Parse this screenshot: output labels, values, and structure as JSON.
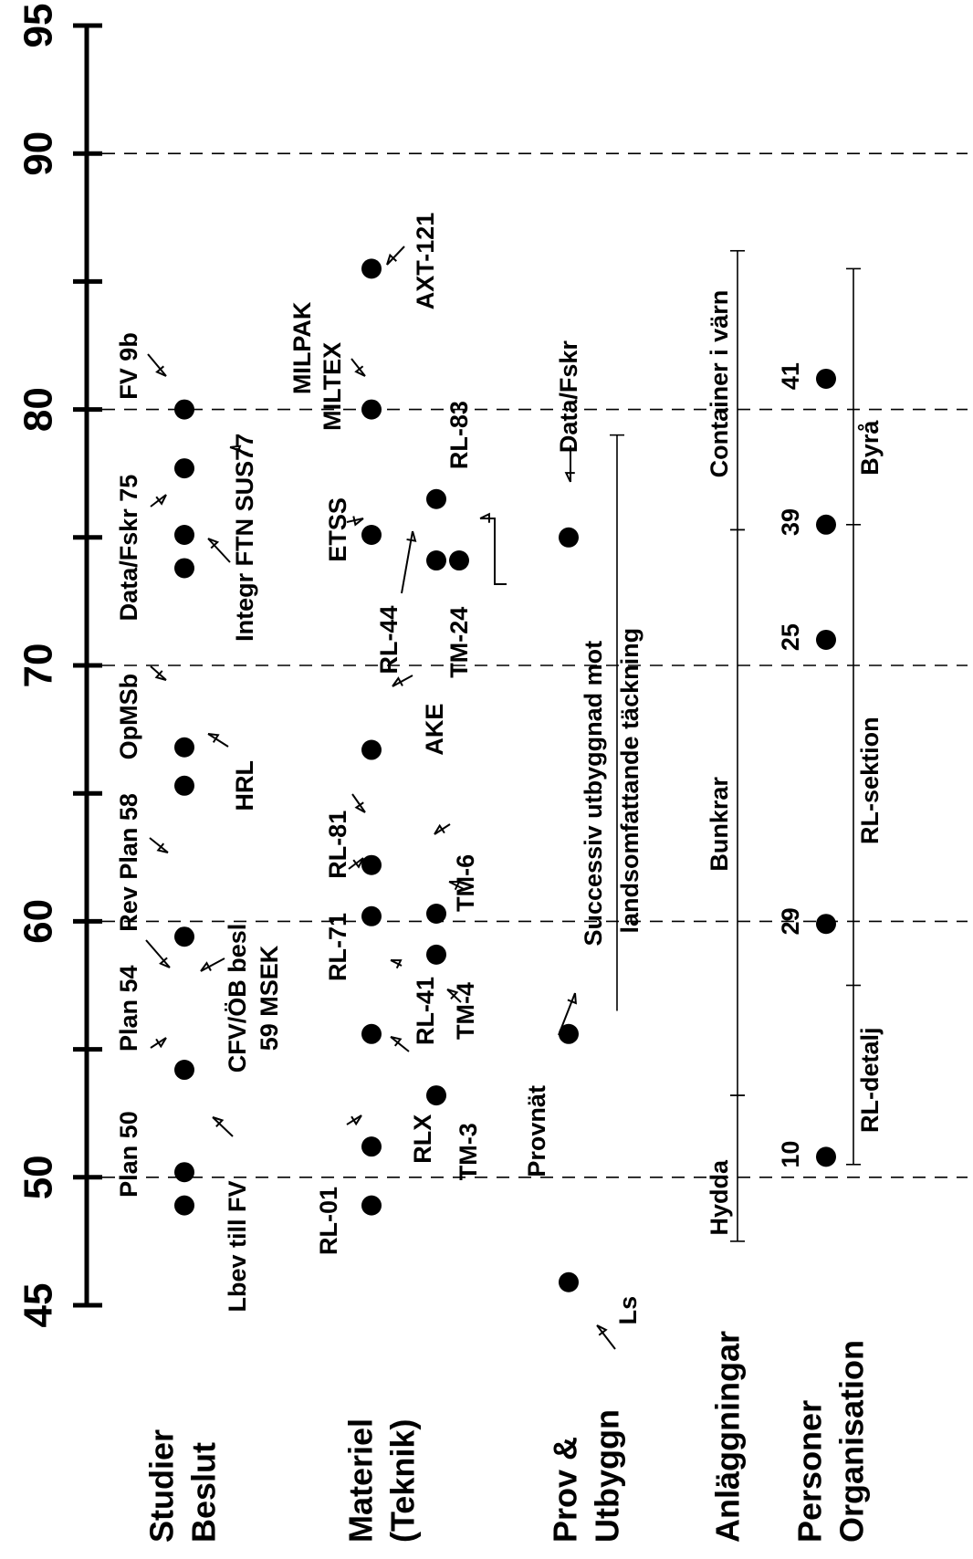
{
  "axis": {
    "ticks": [
      {
        "value": 45,
        "label": "45"
      },
      {
        "value": 50,
        "label": "50"
      },
      {
        "value": 55,
        "label": ""
      },
      {
        "value": 60,
        "label": "60"
      },
      {
        "value": 65,
        "label": ""
      },
      {
        "value": 70,
        "label": "70"
      },
      {
        "value": 75,
        "label": ""
      },
      {
        "value": 80,
        "label": "80"
      },
      {
        "value": 85,
        "label": ""
      },
      {
        "value": 90,
        "label": "90"
      },
      {
        "value": 95,
        "label": "95"
      }
    ],
    "dashed_gridlines": [
      50,
      60,
      70,
      80,
      90
    ]
  },
  "categories": [
    {
      "id": "studier",
      "lines": [
        "Studier",
        "Beslut"
      ]
    },
    {
      "id": "materiel",
      "lines": [
        "Materiel",
        "(Teknik)"
      ]
    },
    {
      "id": "prov",
      "lines": [
        "Prov &",
        "Utbyggn"
      ]
    },
    {
      "id": "anlaggningar",
      "lines": [
        "Anläggningar"
      ]
    },
    {
      "id": "personer",
      "lines": [
        "Personer",
        "Organisation"
      ]
    }
  ],
  "events": {
    "studier": [
      {
        "year": 48.9,
        "label": "Lbev till FV"
      },
      {
        "year": 50.2,
        "label": "Plan 50"
      },
      {
        "year": 54.2,
        "label": "Plan 54"
      },
      {
        "year": 54.2,
        "label": "CFV/ÖB besl"
      },
      {
        "year": 54.2,
        "label": "59 MSEK"
      },
      {
        "year": 59.4,
        "label": "Rev Plan 58"
      },
      {
        "year": 65.3,
        "label": "HRL"
      },
      {
        "year": 66.8,
        "label": "OpMSb"
      },
      {
        "year": 73.8,
        "label": "Integr FTN SUS77"
      },
      {
        "year": 75.1,
        "label": "Data/Fskr 75"
      },
      {
        "year": 77.7,
        "label": ""
      },
      {
        "year": 80.0,
        "label": "FV 9b"
      }
    ],
    "materiel": [
      {
        "year": 48.9,
        "label": "RL-01"
      },
      {
        "year": 51.2,
        "label": "RLX"
      },
      {
        "year": 55.6,
        "label": "RL-41"
      },
      {
        "year": 60.2,
        "label": "RL-71"
      },
      {
        "year": 62.2,
        "label": "RL-81"
      },
      {
        "year": 66.7,
        "label": "AKE"
      },
      {
        "year": 75.1,
        "label": "ETSS"
      },
      {
        "year": 80.0,
        "label": "MILTEX"
      },
      {
        "year": 80.0,
        "label": "MILPAK"
      },
      {
        "year": 85.5,
        "label": "AXT-121"
      }
    ],
    "materiel_b": [
      {
        "year": 53.2,
        "label": "TM-3"
      },
      {
        "year": 58.7,
        "label": "TM-4"
      },
      {
        "year": 60.3,
        "label": "TM-6"
      },
      {
        "year": 74.1,
        "label": "RL-44"
      },
      {
        "year": 76.5,
        "label": "RL-83"
      },
      {
        "year": 74.1,
        "label": "TM-24"
      }
    ],
    "prov": [
      {
        "year": 45.9,
        "label": "Ls"
      },
      {
        "year": 55.6,
        "label": "Provnät"
      },
      {
        "year": 75.0,
        "label": "Data/Fskr"
      }
    ],
    "prov_span_label_1": "Successiv utbyggnad mot",
    "prov_span_label_2": "landsomfattande täckning",
    "anlaggningar": [
      {
        "from": 47.5,
        "to": 53.2,
        "label": "Hydda"
      },
      {
        "from": 53.2,
        "to": 75.3,
        "label": "Bunkrar"
      },
      {
        "from": 75.3,
        "to": 86.2,
        "label": "Container i värn"
      }
    ],
    "personer": [
      {
        "year": 50.8,
        "label": "10"
      },
      {
        "year": 59.9,
        "label": "29"
      },
      {
        "year": 71.0,
        "label": "25"
      },
      {
        "year": 75.5,
        "label": "39"
      },
      {
        "year": 81.2,
        "label": "41"
      }
    ],
    "personer_spans": [
      {
        "from": 50.5,
        "to": 57.5,
        "label": "RL-detalj"
      },
      {
        "from": 57.5,
        "to": 75.5,
        "label": "RL-sektion"
      },
      {
        "from": 75.5,
        "to": 85.5,
        "label": "Byrå"
      }
    ]
  }
}
